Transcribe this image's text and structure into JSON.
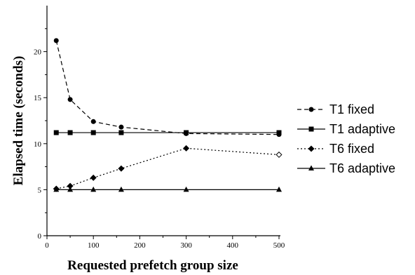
{
  "chart_data": {
    "type": "line",
    "title": "",
    "xlabel": "Requested prefetch group size",
    "ylabel": "Elapsed time (seconds)",
    "xlim": [
      0,
      500
    ],
    "ylim": [
      0,
      25
    ],
    "x_ticks": [
      0,
      100,
      200,
      300,
      400,
      500
    ],
    "y_ticks": [
      0,
      5,
      10,
      15,
      20
    ],
    "grid": false,
    "legend_position": "right",
    "series": [
      {
        "name": "T1 fixed",
        "line_style": "dashed",
        "marker": "circle",
        "x": [
          20,
          50,
          100,
          160,
          300,
          500
        ],
        "y": [
          21.2,
          14.8,
          12.4,
          11.8,
          11.1,
          11.0
        ]
      },
      {
        "name": "T1 adaptive",
        "line_style": "solid",
        "marker": "square",
        "x": [
          20,
          50,
          100,
          160,
          300,
          500
        ],
        "y": [
          11.2,
          11.2,
          11.2,
          11.2,
          11.2,
          11.2
        ]
      },
      {
        "name": "T6 fixed",
        "line_style": "dotted",
        "marker": "diamond",
        "x": [
          20,
          50,
          100,
          160,
          300,
          500
        ],
        "y": [
          5.1,
          5.4,
          6.3,
          7.3,
          9.5,
          8.8
        ]
      },
      {
        "name": "T6 adaptive",
        "line_style": "solid",
        "marker": "triangle",
        "x": [
          20,
          50,
          100,
          160,
          300,
          500
        ],
        "y": [
          5.0,
          5.0,
          5.0,
          5.0,
          5.0,
          5.0
        ]
      }
    ]
  }
}
